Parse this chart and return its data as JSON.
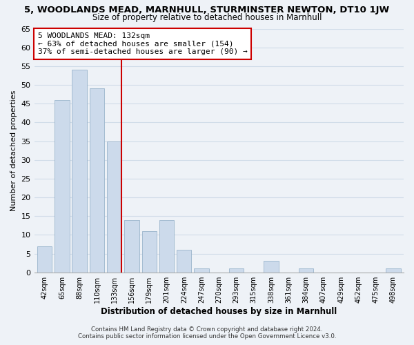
{
  "title": "5, WOODLANDS MEAD, MARNHULL, STURMINSTER NEWTON, DT10 1JW",
  "subtitle": "Size of property relative to detached houses in Marnhull",
  "xlabel": "Distribution of detached houses by size in Marnhull",
  "ylabel": "Number of detached properties",
  "bar_labels": [
    "42sqm",
    "65sqm",
    "88sqm",
    "110sqm",
    "133sqm",
    "156sqm",
    "179sqm",
    "201sqm",
    "224sqm",
    "247sqm",
    "270sqm",
    "293sqm",
    "315sqm",
    "338sqm",
    "361sqm",
    "384sqm",
    "407sqm",
    "429sqm",
    "452sqm",
    "475sqm",
    "498sqm"
  ],
  "bar_values": [
    7,
    46,
    54,
    49,
    35,
    14,
    11,
    14,
    6,
    1,
    0,
    1,
    0,
    3,
    0,
    1,
    0,
    0,
    0,
    0,
    1
  ],
  "bar_color": "#ccdaeb",
  "bar_edge_color": "#9ab4cc",
  "vline_color": "#cc0000",
  "ylim": [
    0,
    65
  ],
  "yticks": [
    0,
    5,
    10,
    15,
    20,
    25,
    30,
    35,
    40,
    45,
    50,
    55,
    60,
    65
  ],
  "annotation_title": "5 WOODLANDS MEAD: 132sqm",
  "annotation_line1": "← 63% of detached houses are smaller (154)",
  "annotation_line2": "37% of semi-detached houses are larger (90) →",
  "annotation_box_facecolor": "#ffffff",
  "annotation_box_edgecolor": "#cc0000",
  "footer_line1": "Contains HM Land Registry data © Crown copyright and database right 2024.",
  "footer_line2": "Contains public sector information licensed under the Open Government Licence v3.0.",
  "grid_color": "#d0dce8",
  "background_color": "#eef2f7"
}
